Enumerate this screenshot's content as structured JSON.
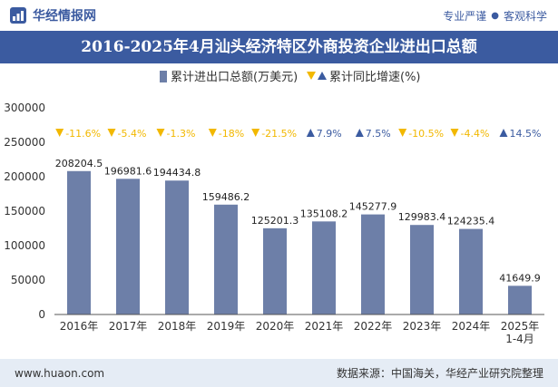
{
  "header": {
    "brand_name": "华经情报网",
    "tagline_left": "专业严谨",
    "tagline_right": "客观科学"
  },
  "footer": {
    "website": "www.huaon.com",
    "source": "数据来源：中国海关，华经产业研究院整理"
  },
  "colors": {
    "bar": "#6d7fa8",
    "brand_blue": "#3b5ba0",
    "growth_negative": "#f2b800",
    "growth_positive": "#3b5ba0",
    "footer_bg": "#e5ecf5"
  },
  "chart_data": {
    "type": "bar",
    "title": "2016-2025年4月汕头经济特区外商投资企业进出口总额",
    "categories": [
      "2016年",
      "2017年",
      "2018年",
      "2019年",
      "2020年",
      "2021年",
      "2022年",
      "2023年",
      "2024年",
      "2025年 1-4月"
    ],
    "series": [
      {
        "name": "累计进出口总额(万美元)",
        "values": [
          208204.5,
          196981.6,
          194434.8,
          159486.2,
          125201.3,
          135108.2,
          145277.9,
          129983.4,
          124235.4,
          41649.9
        ]
      },
      {
        "name": "累计同比增速(%)",
        "values": [
          -11.6,
          -5.4,
          -1.3,
          -18,
          -21.5,
          7.9,
          7.5,
          -10.5,
          -4.4,
          14.5
        ]
      }
    ],
    "data_labels": [
      "208204.5",
      "196981.6",
      "194434.8",
      "159486.2",
      "125201.3",
      "135108.2",
      "145277.9",
      "129983.4",
      "124235.4",
      "41649.9"
    ],
    "growth_labels": [
      "-11.6%",
      "-5.4%",
      "-1.3%",
      "-18%",
      "-21.5%",
      "7.9%",
      "7.5%",
      "-10.5%",
      "-4.4%",
      "14.5%"
    ],
    "y_ticks": [
      "0",
      "50000",
      "100000",
      "150000",
      "200000",
      "250000",
      "300000"
    ],
    "ylim": [
      0,
      300000
    ],
    "grid": false,
    "legend_position": "top-center"
  }
}
